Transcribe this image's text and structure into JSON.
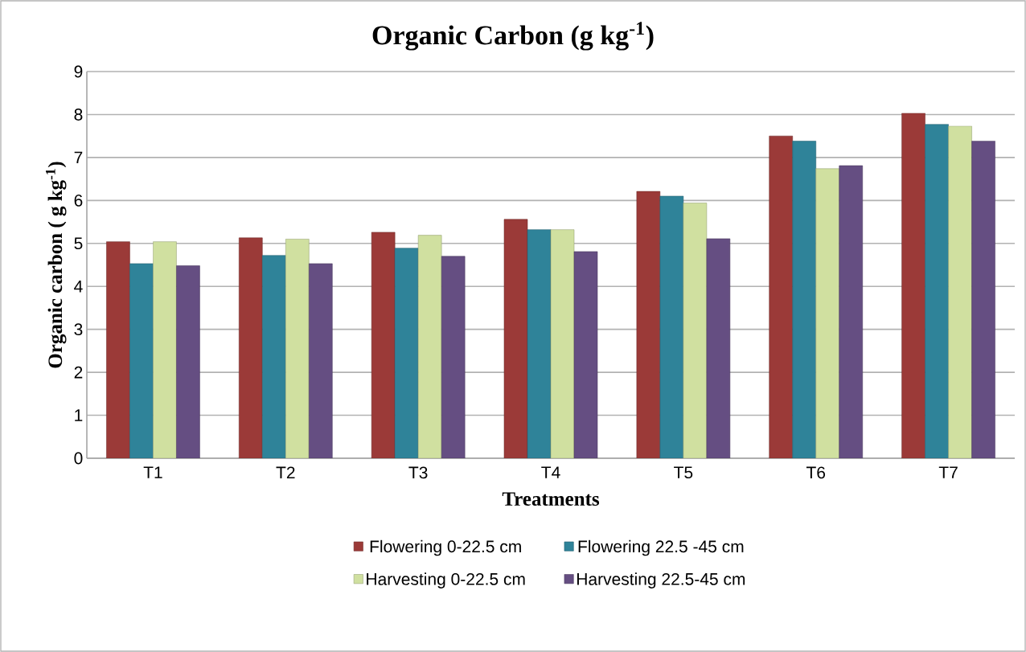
{
  "chart_data": {
    "type": "bar",
    "title": "Organic Carbon (g kg$^{-1}$)",
    "xlabel": "Treatments",
    "ylabel": "Organic carbon ( g kg$^{-1}$)",
    "categories": [
      "T1",
      "T2",
      "T3",
      "T4",
      "T5",
      "T6",
      "T7"
    ],
    "series": [
      {
        "name": "Flowering 0-22.5 cm",
        "color": "#9b3a38",
        "values": [
          5.04,
          5.13,
          5.26,
          5.56,
          6.21,
          7.5,
          8.03
        ]
      },
      {
        "name": "Flowering 22.5 -45 cm",
        "color": "#2f8399",
        "values": [
          4.53,
          4.72,
          4.89,
          5.32,
          6.1,
          7.38,
          7.77
        ]
      },
      {
        "name": "Harvesting 0-22.5 cm",
        "color": "#d0e0a0",
        "values": [
          5.04,
          5.1,
          5.19,
          5.32,
          5.94,
          6.74,
          7.73
        ]
      },
      {
        "name": "Harvesting 22.5-45 cm",
        "color": "#654e82",
        "values": [
          4.48,
          4.53,
          4.7,
          4.81,
          5.11,
          6.81,
          7.38
        ]
      }
    ],
    "ylim": [
      0,
      9
    ],
    "yticks": [
      0,
      1,
      2,
      3,
      4,
      5,
      6,
      7,
      8,
      9
    ],
    "grid": "y",
    "legend": "bottom"
  }
}
